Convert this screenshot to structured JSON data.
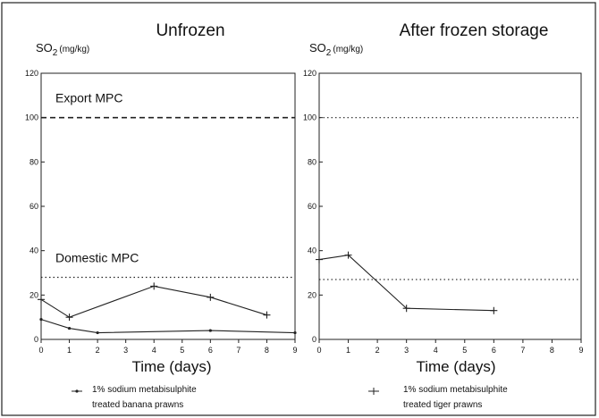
{
  "chart_data": [
    {
      "type": "line",
      "title": "Unfrozen",
      "ylabel_main": "SO",
      "ylabel_sub": "2",
      "ylabel_unit": "(mg/kg)",
      "xlabel": "Time (days)",
      "xlim": [
        0,
        9
      ],
      "ylim": [
        0,
        120
      ],
      "xticks": [
        "0",
        "1",
        "2",
        "3",
        "4",
        "5",
        "6",
        "7",
        "8",
        "9"
      ],
      "yticks": [
        "0",
        "20",
        "40",
        "60",
        "80",
        "100",
        "120"
      ],
      "series": [
        {
          "x": [
            0,
            1,
            4,
            6,
            8
          ],
          "y": [
            18,
            10,
            24,
            19,
            11
          ],
          "marker": "plus"
        },
        {
          "x": [
            0,
            1,
            2,
            6,
            9
          ],
          "y": [
            9,
            5,
            3,
            4,
            3
          ],
          "marker": "dot"
        }
      ],
      "reference_lines": [
        {
          "label": "Export MPC",
          "y": 100,
          "style": "dashed"
        },
        {
          "label": "Domestic MPC",
          "y": 28,
          "style": "dotted"
        }
      ],
      "legend": {
        "line1": "1% sodium metabisulphite",
        "line2": "treated banana prawns"
      }
    },
    {
      "type": "line",
      "title": "After frozen storage",
      "ylabel_main": "SO",
      "ylabel_sub": "2",
      "ylabel_unit": "(mg/kg)",
      "xlabel": "Time (days)",
      "xlim": [
        0,
        9
      ],
      "ylim": [
        0,
        120
      ],
      "xticks": [
        "0",
        "1",
        "2",
        "3",
        "4",
        "5",
        "6",
        "7",
        "8",
        "9"
      ],
      "yticks": [
        "0",
        "20",
        "40",
        "60",
        "80",
        "100",
        "120"
      ],
      "series": [
        {
          "x": [
            0,
            1,
            3,
            6
          ],
          "y": [
            36,
            38,
            14,
            13
          ],
          "marker": "plus"
        }
      ],
      "reference_lines": [
        {
          "y": 100,
          "style": "dotted"
        },
        {
          "y": 27,
          "style": "dotted"
        }
      ],
      "legend": {
        "line1": "1% sodium metabisulphite",
        "line2": "treated tiger prawns"
      }
    }
  ]
}
